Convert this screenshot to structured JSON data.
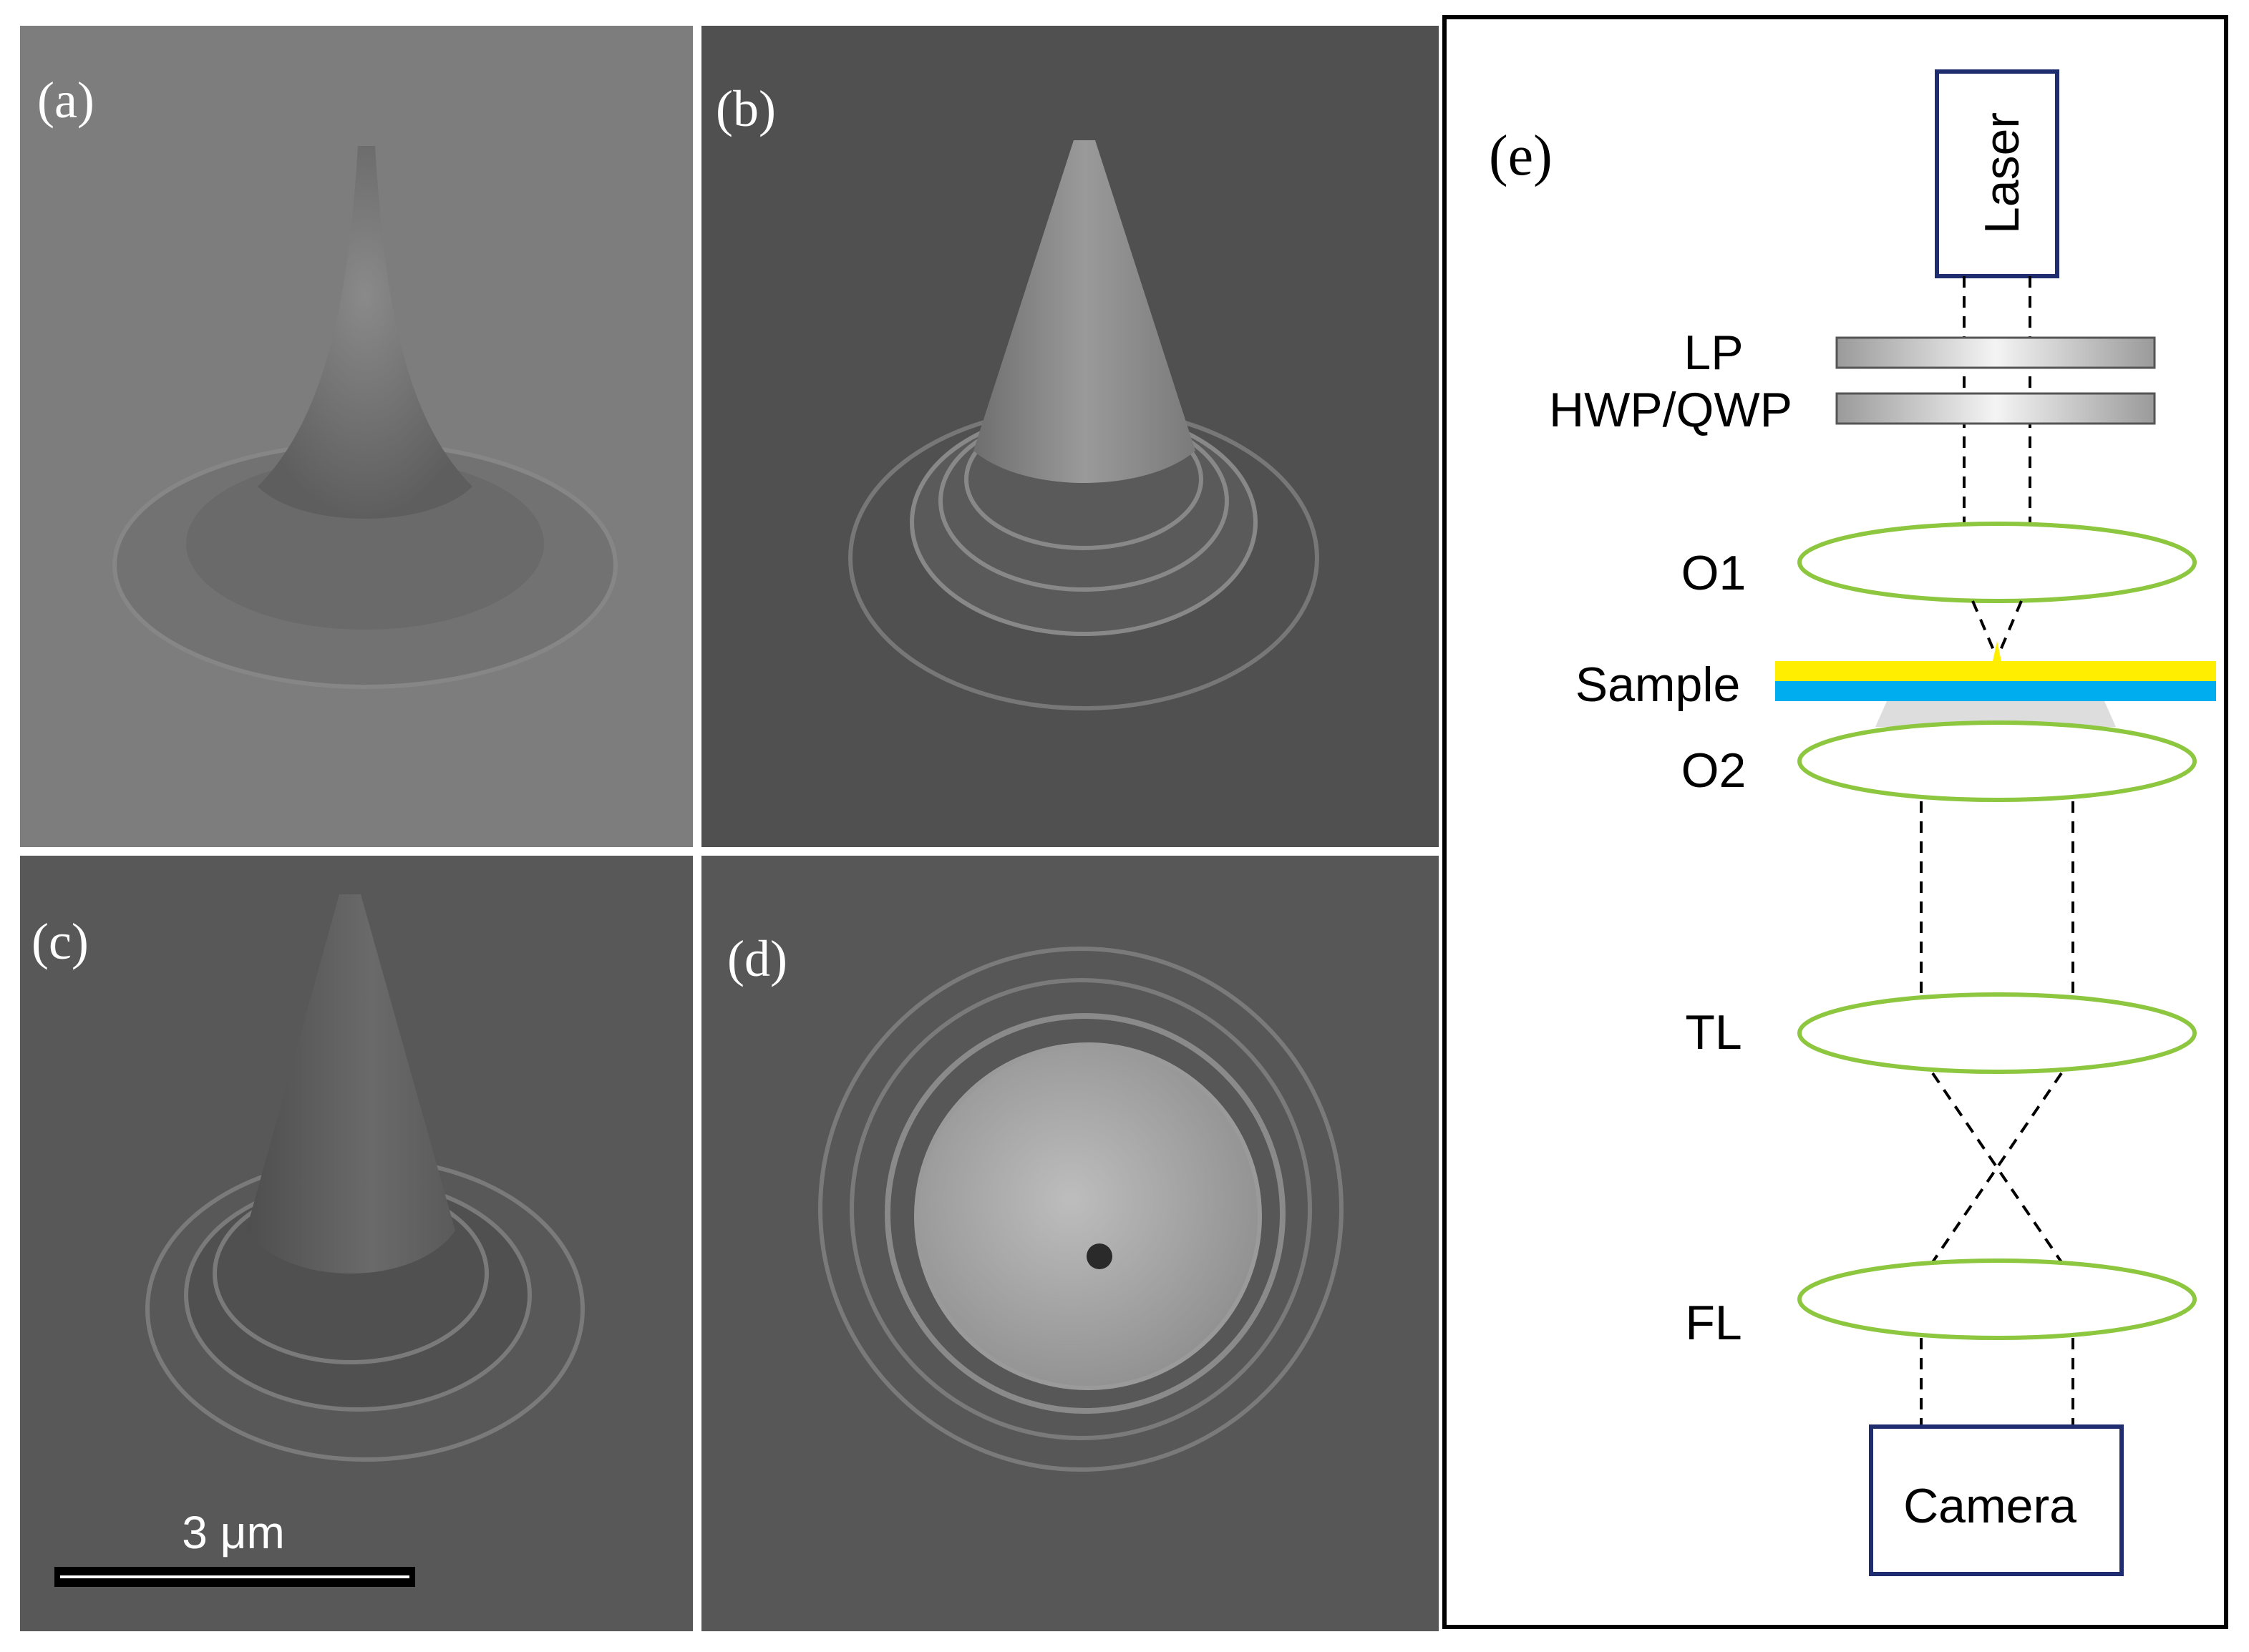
{
  "panels": [
    {
      "label": "(a)"
    },
    {
      "label": "(b)"
    },
    {
      "label": "(c)"
    },
    {
      "label": "(d)"
    }
  ],
  "scale_bar": {
    "label": "3 μm"
  },
  "setup": {
    "label": "(e)",
    "laser": "Laser",
    "lp": "LP",
    "waveplate": "HWP/QWP",
    "objective1": "O1",
    "sample": "Sample",
    "objective2": "O2",
    "tube_lens": "TL",
    "focusing_lens": "FL",
    "camera": "Camera"
  }
}
